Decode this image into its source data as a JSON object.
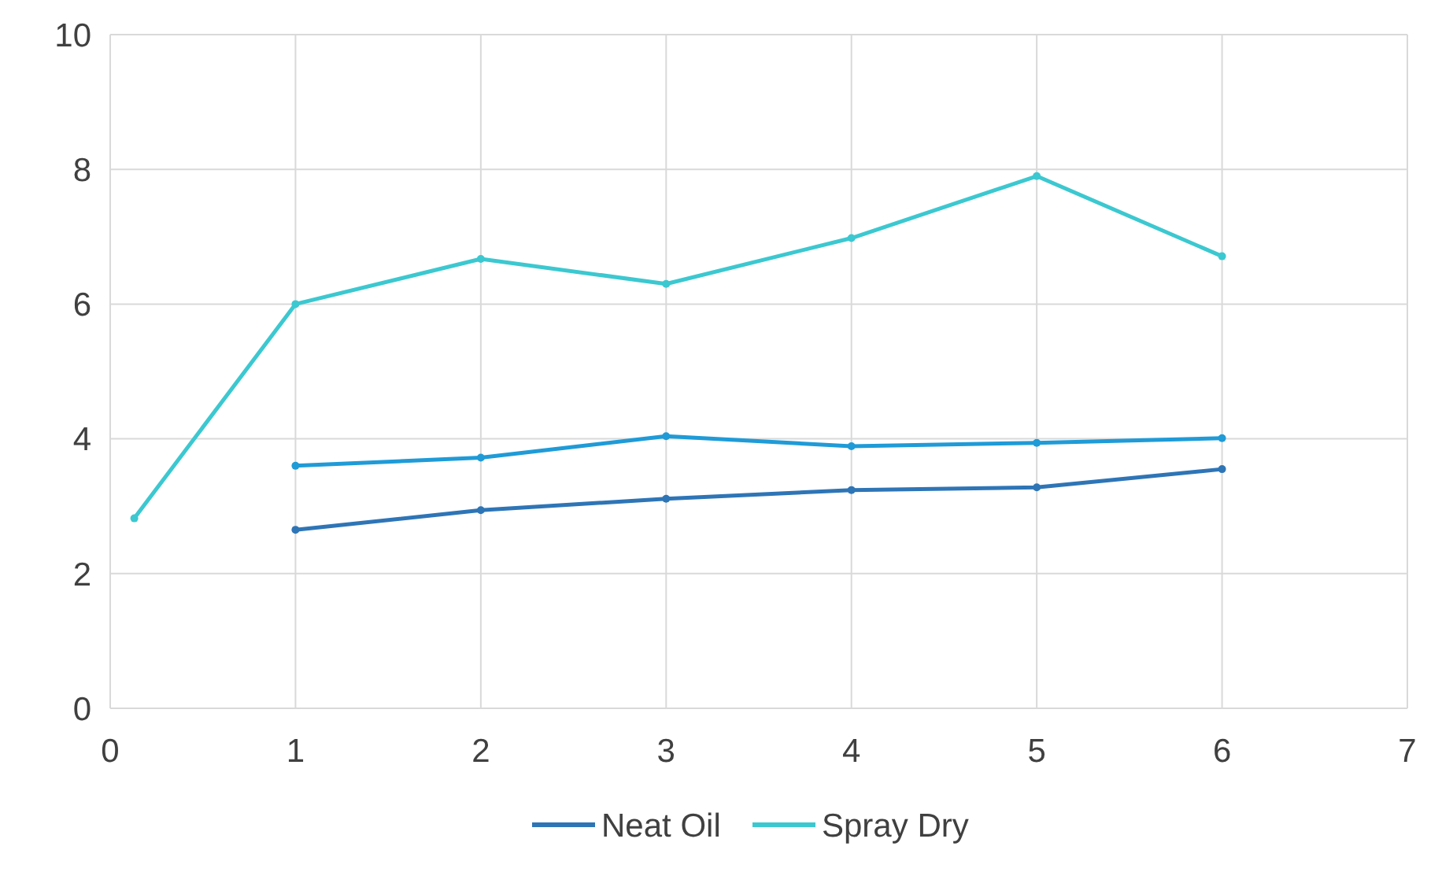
{
  "chart_data": {
    "type": "line",
    "xlim": [
      0,
      7
    ],
    "xticks": [
      0,
      1,
      2,
      3,
      4,
      5,
      6,
      7
    ],
    "ylim": [
      0,
      10
    ],
    "yticks": [
      0,
      2,
      4,
      6,
      8,
      10
    ],
    "grid": true,
    "legend": "bottom",
    "marker": "circle",
    "line_style": "solid",
    "series": [
      {
        "name": "Neat Oil",
        "color": "#2e75b6",
        "x": [
          1,
          2,
          3,
          4,
          5,
          6
        ],
        "values": [
          2.65,
          2.94,
          3.11,
          3.24,
          3.28,
          3.55
        ]
      },
      {
        "color": "#1f9bd7",
        "x": [
          1,
          2,
          3,
          4,
          5,
          6
        ],
        "values": [
          3.6,
          3.72,
          4.04,
          3.89,
          3.94,
          4.01
        ]
      },
      {
        "name": "Spray Dry",
        "color": "#3cc8d0",
        "x": [
          0.13,
          1,
          2,
          3,
          4,
          5,
          6
        ],
        "values": [
          2.82,
          6.0,
          6.67,
          6.3,
          6.98,
          7.9,
          6.71
        ]
      }
    ]
  }
}
